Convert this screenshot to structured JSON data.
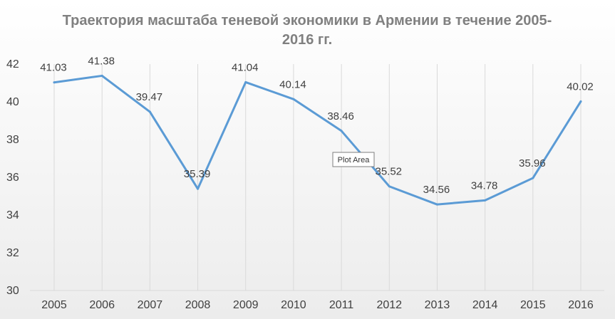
{
  "tooltip": {
    "text": "Plot Area"
  },
  "chart_data": {
    "type": "line",
    "title_line1": "Траектория масштаба теневой экономики в Армении в течение 2005-",
    "title_line2": "2016 гг.",
    "categories": [
      "2005",
      "2006",
      "2007",
      "2008",
      "2009",
      "2010",
      "2011",
      "2012",
      "2013",
      "2014",
      "2015",
      "2016"
    ],
    "series": [
      {
        "values": [
          41.03,
          41.38,
          39.47,
          35.39,
          41.04,
          40.14,
          38.46,
          35.52,
          34.56,
          34.78,
          35.96,
          40.02
        ],
        "color": "#5b9bd5"
      }
    ],
    "data_labels": [
      "41.03",
      "41.38",
      "39.47",
      "35.39",
      "41.04",
      "40.14",
      "38.46",
      "35.52",
      "34.56",
      "34.78",
      "35.96",
      "40.02"
    ],
    "ylim": [
      30,
      42
    ],
    "yticks": [
      30,
      32,
      34,
      36,
      38,
      40,
      42
    ],
    "ytick_labels": [
      "30",
      "32",
      "34",
      "36",
      "38",
      "40",
      "42"
    ],
    "grid": "vertical",
    "background": "gradient-grey",
    "xlabel": "",
    "ylabel": ""
  }
}
